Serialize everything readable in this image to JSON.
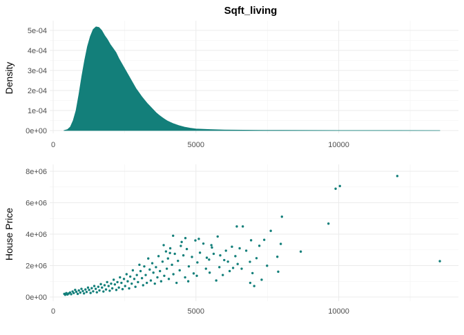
{
  "chart_data": [
    {
      "type": "area",
      "title": "Sqft_living",
      "xlabel": "",
      "ylabel": "Density",
      "xlim": [
        0,
        13540
      ],
      "ylim": [
        0,
        0.00052
      ],
      "x_ticks": [
        0,
        5000,
        10000
      ],
      "x_tick_labels": [
        "0",
        "5000",
        "10000"
      ],
      "y_ticks": [
        0,
        0.0001,
        0.0002,
        0.0003,
        0.0004,
        0.0005
      ],
      "y_tick_labels": [
        "0e+00",
        "1e-04",
        "2e-04",
        "3e-04",
        "4e-04",
        "5e-04"
      ],
      "grid": true,
      "color": "#137f7a",
      "x": [
        370,
        500,
        600,
        700,
        800,
        900,
        1000,
        1100,
        1200,
        1300,
        1400,
        1500,
        1600,
        1700,
        1800,
        1900,
        2000,
        2100,
        2200,
        2300,
        2400,
        2500,
        2600,
        2700,
        2800,
        2900,
        3000,
        3100,
        3200,
        3300,
        3400,
        3500,
        3600,
        3700,
        3800,
        3900,
        4000,
        4200,
        4400,
        4600,
        4800,
        5000,
        5500,
        6000,
        7000,
        8000,
        9000,
        10000,
        11000,
        12000,
        13540
      ],
      "values": [
        0,
        5e-06,
        1.8e-05,
        5e-05,
        0.0001,
        0.00018,
        0.00027,
        0.00035,
        0.00042,
        0.00047,
        0.000505,
        0.000518,
        0.000515,
        0.0005,
        0.000475,
        0.000455,
        0.00043,
        0.00041,
        0.00039,
        0.00036,
        0.000335,
        0.00031,
        0.000285,
        0.00026,
        0.000235,
        0.00021,
        0.00019,
        0.00017,
        0.000152,
        0.000135,
        0.00012,
        0.000105,
        9e-05,
        7.8e-05,
        6.7e-05,
        5.7e-05,
        4.8e-05,
        3.5e-05,
        2.5e-05,
        1.7e-05,
        1.2e-05,
        8e-06,
        5e-06,
        3e-06,
        1.5e-06,
        1e-06,
        7e-07,
        5e-07,
        3e-07,
        2e-07,
        1e-07
      ]
    },
    {
      "type": "scatter",
      "xlabel": "",
      "ylabel": "House Price",
      "xlim": [
        0,
        13540
      ],
      "ylim": [
        0,
        8000000
      ],
      "x_ticks": [
        0,
        5000,
        10000
      ],
      "x_tick_labels": [
        "0",
        "5000",
        "10000"
      ],
      "y_ticks": [
        0,
        2000000,
        4000000,
        6000000,
        8000000
      ],
      "y_tick_labels": [
        "0e+00",
        "2e+06",
        "4e+06",
        "6e+06",
        "8e+06"
      ],
      "grid": true,
      "color": "#137f7a",
      "points": [
        [
          13540,
          2280000
        ],
        [
          12050,
          7700000
        ],
        [
          10040,
          7060000
        ],
        [
          9890,
          6890000
        ],
        [
          9640,
          4670000
        ],
        [
          8010,
          5110000
        ],
        [
          8670,
          2890000
        ],
        [
          7620,
          4210000
        ],
        [
          7390,
          3640000
        ],
        [
          7220,
          3260000
        ],
        [
          7850,
          2560000
        ],
        [
          7880,
          1610000
        ],
        [
          7490,
          1990000
        ],
        [
          7120,
          2470000
        ],
        [
          6640,
          4490000
        ],
        [
          6430,
          4490000
        ],
        [
          6930,
          3610000
        ],
        [
          6980,
          1520000
        ],
        [
          6890,
          2240000
        ],
        [
          6760,
          2950000
        ],
        [
          6530,
          3100000
        ],
        [
          6460,
          2100000
        ],
        [
          6380,
          2600000
        ],
        [
          6260,
          3200000
        ],
        [
          6900,
          900000
        ],
        [
          7040,
          700000
        ],
        [
          7300,
          1100000
        ],
        [
          7970,
          3380000
        ],
        [
          6180,
          1650000
        ],
        [
          6300,
          1850000
        ],
        [
          5990,
          2350000
        ],
        [
          5850,
          2650000
        ],
        [
          5760,
          3850000
        ],
        [
          5620,
          2750000
        ],
        [
          5940,
          1400000
        ],
        [
          5710,
          1050000
        ],
        [
          5540,
          3300000
        ],
        [
          5460,
          2380000
        ],
        [
          5350,
          1800000
        ],
        [
          5260,
          3400000
        ],
        [
          5140,
          2820000
        ],
        [
          5050,
          2200000
        ],
        [
          4980,
          3600000
        ],
        [
          4920,
          1500000
        ],
        [
          4860,
          2550000
        ],
        [
          4750,
          1950000
        ],
        [
          4680,
          3050000
        ],
        [
          4620,
          1250000
        ],
        [
          4560,
          2650000
        ],
        [
          4470,
          3250000
        ],
        [
          4430,
          1700000
        ],
        [
          4370,
          2300000
        ],
        [
          4320,
          900000
        ],
        [
          4260,
          2750000
        ],
        [
          4210,
          1450000
        ],
        [
          4160,
          2050000
        ],
        [
          4100,
          3100000
        ],
        [
          4050,
          1150000
        ],
        [
          4020,
          2450000
        ],
        [
          3980,
          1800000
        ],
        [
          3950,
          2900000
        ],
        [
          3890,
          1350000
        ],
        [
          3830,
          2250000
        ],
        [
          3780,
          1000000
        ],
        [
          3740,
          1650000
        ],
        [
          3690,
          2600000
        ],
        [
          3650,
          1250000
        ],
        [
          3600,
          1900000
        ],
        [
          3560,
          850000
        ],
        [
          3510,
          1550000
        ],
        [
          3470,
          2150000
        ],
        [
          3420,
          1050000
        ],
        [
          3380,
          1750000
        ],
        [
          3330,
          2450000
        ],
        [
          3280,
          900000
        ],
        [
          3240,
          1400000
        ],
        [
          3190,
          1950000
        ],
        [
          3150,
          750000
        ],
        [
          3110,
          1200000
        ],
        [
          3060,
          1650000
        ],
        [
          3020,
          2050000
        ],
        [
          2970,
          950000
        ],
        [
          2930,
          1400000
        ],
        [
          2880,
          650000
        ],
        [
          2840,
          1150000
        ],
        [
          2790,
          1700000
        ],
        [
          2750,
          850000
        ],
        [
          2700,
          1300000
        ],
        [
          2660,
          550000
        ],
        [
          2610,
          1000000
        ],
        [
          2570,
          1450000
        ],
        [
          2520,
          700000
        ],
        [
          2480,
          1150000
        ],
        [
          2430,
          500000
        ],
        [
          2390,
          900000
        ],
        [
          2340,
          1250000
        ],
        [
          2300,
          600000
        ],
        [
          2250,
          950000
        ],
        [
          2210,
          450000
        ],
        [
          2160,
          800000
        ],
        [
          2120,
          1100000
        ],
        [
          2070,
          550000
        ],
        [
          2030,
          850000
        ],
        [
          1980,
          400000
        ],
        [
          1940,
          700000
        ],
        [
          1890,
          950000
        ],
        [
          1850,
          480000
        ],
        [
          1800,
          750000
        ],
        [
          1760,
          350000
        ],
        [
          1710,
          600000
        ],
        [
          1670,
          820000
        ],
        [
          1620,
          420000
        ],
        [
          1580,
          650000
        ],
        [
          1530,
          300000
        ],
        [
          1490,
          520000
        ],
        [
          1440,
          700000
        ],
        [
          1400,
          360000
        ],
        [
          1350,
          560000
        ],
        [
          1310,
          260000
        ],
        [
          1260,
          450000
        ],
        [
          1220,
          600000
        ],
        [
          1170,
          320000
        ],
        [
          1130,
          480000
        ],
        [
          1080,
          230000
        ],
        [
          1040,
          380000
        ],
        [
          990,
          520000
        ],
        [
          950,
          280000
        ],
        [
          900,
          420000
        ],
        [
          860,
          200000
        ],
        [
          810,
          330000
        ],
        [
          770,
          450000
        ],
        [
          720,
          250000
        ],
        [
          680,
          350000
        ],
        [
          630,
          180000
        ],
        [
          590,
          290000
        ],
        [
          540,
          220000
        ],
        [
          500,
          160000
        ],
        [
          460,
          250000
        ],
        [
          420,
          140000
        ],
        [
          390,
          200000
        ],
        [
          4200,
          3900000
        ],
        [
          4500,
          3500000
        ],
        [
          5100,
          3700000
        ],
        [
          5560,
          3150000
        ],
        [
          6050,
          2950000
        ],
        [
          3870,
          3300000
        ],
        [
          4090,
          2800000
        ],
        [
          4630,
          3750000
        ],
        [
          5380,
          2500000
        ],
        [
          5820,
          1900000
        ],
        [
          6600,
          1800000
        ],
        [
          6120,
          2250000
        ],
        [
          5480,
          1550000
        ],
        [
          5030,
          1350000
        ],
        [
          4730,
          1000000
        ]
      ]
    }
  ]
}
